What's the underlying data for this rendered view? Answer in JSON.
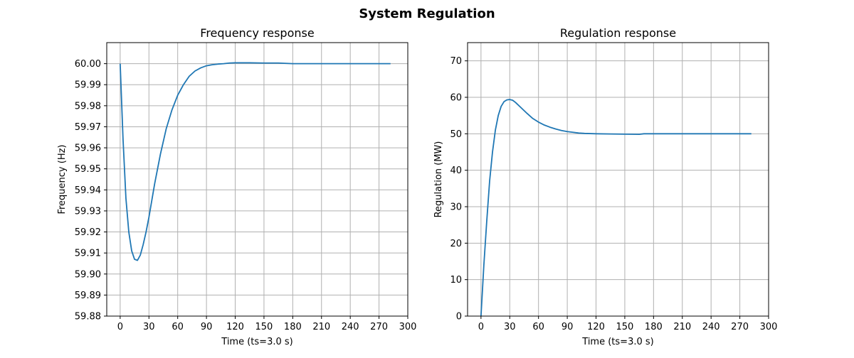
{
  "figure": {
    "suptitle": "System Regulation"
  },
  "colors": {
    "series": "#1f77b4",
    "grid": "#b0b0b0"
  },
  "chart_data": [
    {
      "type": "line",
      "title": "Frequency response",
      "xlabel": "Time (ts=3.0 s)",
      "ylabel": "Frequency (Hz)",
      "xlim": [
        -14,
        300
      ],
      "ylim": [
        59.88,
        60.01
      ],
      "xticks": [
        0,
        30,
        60,
        90,
        120,
        150,
        180,
        210,
        240,
        270,
        300
      ],
      "yticks": [
        59.88,
        59.89,
        59.9,
        59.91,
        59.92,
        59.93,
        59.94,
        59.95,
        59.96,
        59.97,
        59.98,
        59.99,
        60.0
      ],
      "ytick_decimals": 2,
      "grid": true,
      "series": [
        {
          "x": [
            0,
            3,
            6,
            9,
            12,
            15,
            18,
            21,
            24,
            27,
            30,
            36,
            42,
            48,
            54,
            60,
            66,
            72,
            78,
            84,
            90,
            96,
            102,
            108,
            114,
            120,
            135,
            150,
            165,
            180,
            210,
            240,
            270,
            282
          ],
          "y": [
            60.0,
            59.964,
            59.936,
            59.92,
            59.911,
            59.907,
            59.9065,
            59.909,
            59.914,
            59.92,
            59.927,
            59.943,
            59.957,
            59.969,
            59.978,
            59.985,
            59.99,
            59.994,
            59.9965,
            59.998,
            59.999,
            59.9995,
            59.9998,
            60.0,
            60.0003,
            60.0004,
            60.0004,
            60.0003,
            60.0003,
            60.0,
            60.0,
            60.0,
            60.0,
            60.0
          ]
        }
      ]
    },
    {
      "type": "line",
      "title": "Regulation response",
      "xlabel": "Time (ts=3.0 s)",
      "ylabel": "Regulation (MW)",
      "xlim": [
        -14,
        300
      ],
      "ylim": [
        0,
        75
      ],
      "xticks": [
        0,
        30,
        60,
        90,
        120,
        150,
        180,
        210,
        240,
        270,
        300
      ],
      "yticks": [
        0,
        10,
        20,
        30,
        40,
        50,
        60,
        70
      ],
      "ytick_decimals": 0,
      "grid": true,
      "series": [
        {
          "x": [
            0,
            3,
            6,
            9,
            12,
            15,
            18,
            21,
            24,
            27,
            30,
            33,
            36,
            42,
            48,
            54,
            60,
            66,
            72,
            78,
            84,
            90,
            96,
            102,
            108,
            120,
            135,
            150,
            165,
            170,
            180,
            210,
            240,
            270,
            282
          ],
          "y": [
            0,
            14,
            26,
            37,
            45,
            51,
            55,
            57.5,
            58.8,
            59.3,
            59.4,
            59.2,
            58.6,
            57.1,
            55.6,
            54.2,
            53.2,
            52.4,
            51.8,
            51.3,
            50.9,
            50.6,
            50.4,
            50.2,
            50.1,
            50.0,
            49.95,
            49.9,
            49.85,
            50.0,
            50.0,
            50.0,
            50.0,
            50.0,
            50.0
          ]
        }
      ]
    }
  ]
}
